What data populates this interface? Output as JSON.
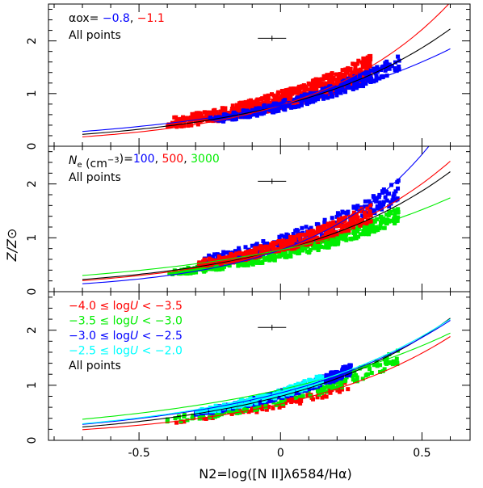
{
  "chart_data": {
    "type": "scatter",
    "xlabel": "N2=log([N II]λ6584/Hα)",
    "ylabel": "Z/Z⊙",
    "xlim": [
      -0.82,
      0.67
    ],
    "x_ticks": [
      "-0.5",
      "0",
      "0.5"
    ],
    "x_tick_values": [
      -0.5,
      0,
      0.5
    ],
    "y_ticks": [
      "0",
      "1",
      "2"
    ],
    "y_tick_values": [
      0,
      1,
      2
    ],
    "colors": {
      "black": "#000000",
      "red": "#ff0000",
      "blue": "#0000ff",
      "green": "#00ee00",
      "cyan": "#00ffff"
    },
    "panels": [
      {
        "ylim": [
          0,
          2.7
        ],
        "legend": [
          [
            {
              "text": "αox= ",
              "color": "#000000"
            },
            {
              "text": "−0.8",
              "color": "#0000ff"
            },
            {
              "text": ", ",
              "color": "#000000"
            },
            {
              "text": "−1.1",
              "color": "#ff0000"
            }
          ],
          [
            {
              "text": "All points",
              "color": "#000000"
            }
          ]
        ],
        "errorbar": {
          "x": -0.03,
          "y": 2.05,
          "xerr": 0.05,
          "yerr": 0.05
        },
        "points": [
          {
            "name": "all-points-red",
            "color": "#ff0000",
            "n": 650,
            "x_range": [
              -0.4,
              0.32
            ],
            "spread": 0.18,
            "scale": 1.06,
            "seed": 11
          },
          {
            "name": "all-points-blue",
            "color": "#0000ff",
            "n": 320,
            "x_range": [
              -0.25,
              0.42
            ],
            "spread": 0.12,
            "scale": 0.95,
            "seed": 23
          }
        ],
        "curves": [
          {
            "name": "fit-black",
            "color": "#000000",
            "a": 0.775,
            "b": 1.76,
            "x_range": [
              -0.7,
              0.6
            ]
          },
          {
            "name": "fit-red",
            "color": "#ff0000",
            "a": 0.775,
            "b": 2.1,
            "x_range": [
              -0.7,
              0.6
            ]
          },
          {
            "name": "fit-blue",
            "color": "#0000ff",
            "a": 0.775,
            "b": 1.45,
            "x_range": [
              -0.7,
              0.6
            ]
          }
        ]
      },
      {
        "ylim": [
          0,
          2.7
        ],
        "legend": [
          [
            {
              "text": "Ne",
              "color": "#000000",
              "sub": "e"
            },
            {
              "text": " (cm",
              "color": "#000000"
            },
            {
              "text": "−3",
              "color": "#000000",
              "sup": true
            },
            {
              "text": ")=",
              "color": "#000000"
            },
            {
              "text": "100",
              "color": "#0000ff"
            },
            {
              "text": ", ",
              "color": "#000000"
            },
            {
              "text": "500",
              "color": "#ff0000"
            },
            {
              "text": ", ",
              "color": "#000000"
            },
            {
              "text": "3000",
              "color": "#00ee00"
            }
          ],
          [
            {
              "text": "All points",
              "color": "#000000"
            }
          ]
        ],
        "errorbar": {
          "x": -0.03,
          "y": 2.05,
          "xerr": 0.05,
          "yerr": 0.05
        },
        "points": [
          {
            "name": "all-points-green",
            "color": "#00ee00",
            "n": 420,
            "x_range": [
              -0.4,
              0.42
            ],
            "spread": 0.1,
            "scale": 0.86,
            "seed": 37
          },
          {
            "name": "all-points-blue",
            "color": "#0000ff",
            "n": 260,
            "x_range": [
              -0.3,
              0.42
            ],
            "spread": 0.16,
            "scale": 1.12,
            "seed": 41
          },
          {
            "name": "all-points-red",
            "color": "#ff0000",
            "n": 340,
            "x_range": [
              -0.3,
              0.32
            ],
            "spread": 0.14,
            "scale": 1.04,
            "seed": 53
          }
        ],
        "curves": [
          {
            "name": "fit-black",
            "color": "#000000",
            "a": 0.775,
            "b": 1.76,
            "x_range": [
              -0.7,
              0.6
            ]
          },
          {
            "name": "fit-red",
            "color": "#ff0000",
            "a": 0.775,
            "b": 1.9,
            "x_range": [
              -0.7,
              0.6
            ]
          },
          {
            "name": "fit-blue",
            "color": "#0000ff",
            "a": 0.775,
            "b": 2.38,
            "x_range": [
              -0.7,
              0.6
            ]
          },
          {
            "name": "fit-green",
            "color": "#00ee00",
            "a": 0.775,
            "b": 1.35,
            "x_range": [
              -0.7,
              0.6
            ]
          }
        ]
      },
      {
        "ylim": [
          0,
          2.7
        ],
        "legend": [
          [
            {
              "text": "−4.0  ≤  log",
              "color": "#ff0000"
            },
            {
              "text": "U",
              "color": "#ff0000",
              "italic": true
            },
            {
              "text": "  <  −3.5",
              "color": "#ff0000"
            }
          ],
          [
            {
              "text": "−3.5  ≤  log",
              "color": "#00ee00"
            },
            {
              "text": "U",
              "color": "#00ee00",
              "italic": true
            },
            {
              "text": "  <  −3.0",
              "color": "#00ee00"
            }
          ],
          [
            {
              "text": "−3.0  ≤  log",
              "color": "#0000ff"
            },
            {
              "text": "U",
              "color": "#0000ff",
              "italic": true
            },
            {
              "text": "  <  −2.5",
              "color": "#0000ff"
            }
          ],
          [
            {
              "text": "−2.5  ≤  log",
              "color": "#00ffff"
            },
            {
              "text": "U",
              "color": "#00ffff",
              "italic": true
            },
            {
              "text": "  <  −2.0",
              "color": "#00ffff"
            }
          ],
          [
            {
              "text": "All points",
              "color": "#000000"
            }
          ]
        ],
        "errorbar": {
          "x": -0.03,
          "y": 2.05,
          "xerr": 0.05,
          "yerr": 0.05
        },
        "points": [
          {
            "name": "all-points-red",
            "color": "#ff0000",
            "n": 90,
            "x_range": [
              -0.4,
              0.25
            ],
            "spread": 0.07,
            "scale": 0.82,
            "seed": 61
          },
          {
            "name": "all-points-green",
            "color": "#00ee00",
            "n": 180,
            "x_range": [
              -0.4,
              0.42
            ],
            "spread": 0.1,
            "scale": 0.92,
            "seed": 67
          },
          {
            "name": "all-points-blue",
            "color": "#0000ff",
            "n": 380,
            "x_range": [
              -0.3,
              0.25
            ],
            "spread": 0.09,
            "scale": 1.05,
            "seed": 71
          },
          {
            "name": "all-points-cyan",
            "color": "#00ffff",
            "n": 150,
            "x_range": [
              -0.3,
              0.15
            ],
            "spread": 0.09,
            "scale": 1.08,
            "seed": 79
          }
        ],
        "curves": [
          {
            "name": "fit-black",
            "color": "#000000",
            "a": 0.8,
            "b": 1.7,
            "x_range": [
              -0.7,
              0.6
            ]
          },
          {
            "name": "fit-red",
            "color": "#ff0000",
            "a": 0.66,
            "b": 1.75,
            "x_range": [
              -0.7,
              0.6
            ]
          },
          {
            "name": "fit-green",
            "color": "#00ee00",
            "a": 0.92,
            "b": 1.25,
            "x_range": [
              -0.7,
              0.6
            ]
          },
          {
            "name": "fit-blue",
            "color": "#0000ff",
            "a": 0.86,
            "b": 1.55,
            "x_range": [
              -0.7,
              0.6
            ]
          },
          {
            "name": "fit-cyan",
            "color": "#00ffff",
            "a": 0.88,
            "b": 1.53,
            "x_range": [
              -0.7,
              0.6
            ]
          }
        ]
      }
    ]
  }
}
